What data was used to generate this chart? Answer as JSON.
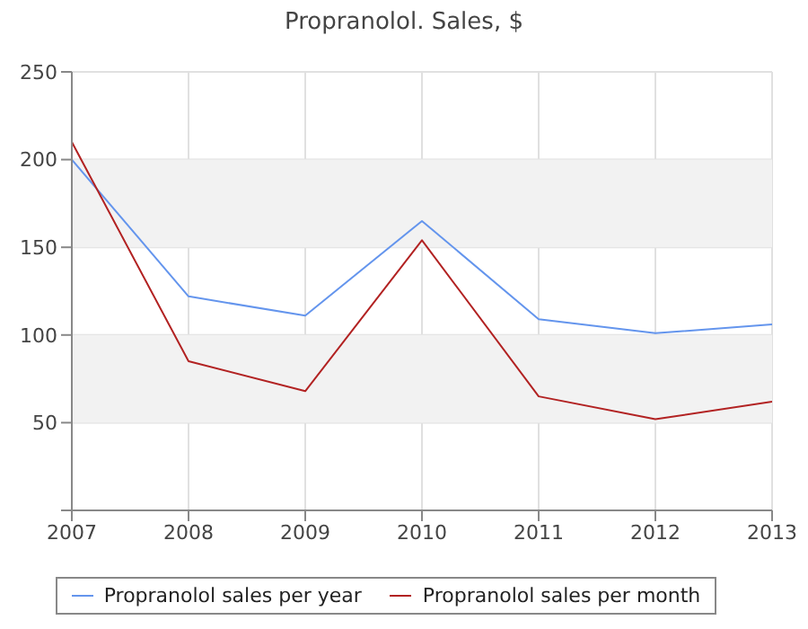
{
  "chart_data": {
    "type": "line",
    "title": "Propranolol. Sales, $",
    "x": [
      2007,
      2008,
      2009,
      2010,
      2011,
      2012,
      2013
    ],
    "series": [
      {
        "name": "Propranolol sales per year",
        "color": "#6495ed",
        "values": [
          200,
          122,
          111,
          165,
          109,
          101,
          106
        ]
      },
      {
        "name": "Propranolol sales per month",
        "color": "#b22222",
        "values": [
          210,
          85,
          68,
          154,
          65,
          52,
          62
        ]
      }
    ],
    "xlim": [
      2007,
      2013
    ],
    "xticks": [
      2007,
      2008,
      2009,
      2010,
      2011,
      2012,
      2013
    ],
    "ylim": [
      0,
      250
    ],
    "yticks": [
      {
        "value": 0,
        "label": null
      },
      50,
      100,
      150,
      200,
      250
    ],
    "bands": [
      {
        "axis": "y",
        "from": 50,
        "to": 100,
        "color": "#f2f2f2"
      },
      {
        "axis": "y",
        "from": 150,
        "to": 200,
        "color": "#f2f2f2"
      }
    ],
    "grid": true,
    "legend": "bottom",
    "marker": "none",
    "line_style": "solid"
  }
}
